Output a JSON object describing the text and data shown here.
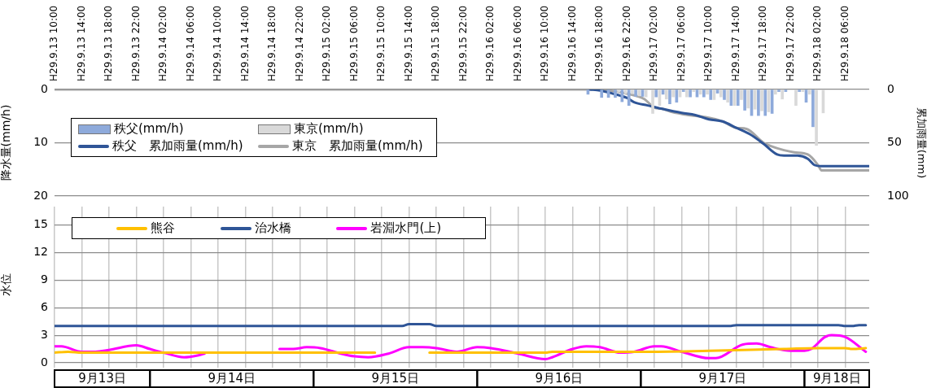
{
  "chart_data": [
    {
      "type": "bar",
      "ylabel": "降水量(mm/h)",
      "y2label": "累加雨量(mm)",
      "xlim": [
        "--09-13T10:00",
        "--09-18T09:30"
      ],
      "xticks": [
        {
          "value": "--09-13T10:00",
          "label": "H29.9.13 10:00"
        },
        {
          "value": "--09-13T14:00",
          "label": "H29.9.13 14:00"
        },
        {
          "value": "--09-13T18:00",
          "label": "H29.9.13 18:00"
        },
        {
          "value": "--09-13T22:00",
          "label": "H29.9.13 22:00"
        },
        {
          "value": "--09-14T02:00",
          "label": "H29.9.14 02:00"
        },
        {
          "value": "--09-14T06:00",
          "label": "H29.9.14 06:00"
        },
        {
          "value": "--09-14T10:00",
          "label": "H29.9.14 10:00"
        },
        {
          "value": "--09-14T14:00",
          "label": "H29.9.14 14:00"
        },
        {
          "value": "--09-14T18:00",
          "label": "H29.9.14 18:00"
        },
        {
          "value": "--09-14T22:00",
          "label": "H29.9.14 22:00"
        },
        {
          "value": "--09-15T02:00",
          "label": "H29.9.15 02:00"
        },
        {
          "value": "--09-15T06:00",
          "label": "H29.9.15 06:00"
        },
        {
          "value": "--09-15T10:00",
          "label": "H29.9.15 10:00"
        },
        {
          "value": "--09-15T14:00",
          "label": "H29.9.15 14:00"
        },
        {
          "value": "--09-15T18:00",
          "label": "H29.9.15 18:00"
        },
        {
          "value": "--09-15T22:00",
          "label": "H29.9.15 22:00"
        },
        {
          "value": "--09-16T02:00",
          "label": "H29.9.16 02:00"
        },
        {
          "value": "--09-16T06:00",
          "label": "H29.9.16 06:00"
        },
        {
          "value": "--09-16T10:00",
          "label": "H29.9.16 10:00"
        },
        {
          "value": "--09-16T14:00",
          "label": "H29.9.16 14:00"
        },
        {
          "value": "--09-16T18:00",
          "label": "H29.9.16 18:00"
        },
        {
          "value": "--09-16T22:00",
          "label": "H29.9.16 22:00"
        },
        {
          "value": "--09-17T02:00",
          "label": "H29.9.17 02:00"
        },
        {
          "value": "--09-17T06:00",
          "label": "H29.9.17 06:00"
        },
        {
          "value": "--09-17T10:00",
          "label": "H29.9.17 10:00"
        },
        {
          "value": "--09-17T14:00",
          "label": "H29.9.17 14:00"
        },
        {
          "value": "--09-17T18:00",
          "label": "H29.9.17 18:00"
        },
        {
          "value": "--09-17T22:00",
          "label": "H29.9.17 22:00"
        },
        {
          "value": "--09-18T02:00",
          "label": "H29.9.18 02:00"
        },
        {
          "value": "--09-18T06:00",
          "label": "H29.9.18 06:00"
        }
      ],
      "ylim": [
        20,
        0
      ],
      "yticks": [
        0,
        10,
        20
      ],
      "y2lim": [
        100,
        0
      ],
      "y2ticks": [
        0,
        50,
        100
      ],
      "grid": "y",
      "legend": "top left",
      "series": [
        {
          "name": "秩父(mm/h)",
          "color": "#8eaadb",
          "x": [
            "--09-16T16:15",
            "--09-16T18:15",
            "--09-16T19:15",
            "--09-16T20:15",
            "--09-16T21:15",
            "--09-16T22:15",
            "--09-16T23:15",
            "--09-17T00:15",
            "--09-17T02:15",
            "--09-17T03:15",
            "--09-17T04:15",
            "--09-17T05:15",
            "--09-17T06:15",
            "--09-17T07:15",
            "--09-17T08:15",
            "--09-17T09:15",
            "--09-17T10:15",
            "--09-17T11:15",
            "--09-17T12:15",
            "--09-17T13:15",
            "--09-17T14:15",
            "--09-17T15:15",
            "--09-17T16:15",
            "--09-17T17:15",
            "--09-17T18:15",
            "--09-17T19:15",
            "--09-17T20:15",
            "--09-17T21:15",
            "--09-17T23:15",
            "--09-18T00:15",
            "--09-18T01:15"
          ],
          "values": [
            0.9,
            1.5,
            1.5,
            1.5,
            2.3,
            3.0,
            1.3,
            1.3,
            1.4,
            0.9,
            2.7,
            2.4,
            0.4,
            1.4,
            1.4,
            1.4,
            1.9,
            0.7,
            1.9,
            3.0,
            3.0,
            3.9,
            4.9,
            4.9,
            4.9,
            4.5,
            0.4,
            0.4,
            0.4,
            2.4,
            7.0
          ]
        },
        {
          "name": "東京(mm/h)",
          "color": "#d9d9d9",
          "x": [
            "--09-16T20:45",
            "--09-16T21:45",
            "--09-16T22:45",
            "--09-16T23:45",
            "--09-17T00:45",
            "--09-17T01:45",
            "--09-17T02:45",
            "--09-17T03:45",
            "--09-17T04:45",
            "--09-17T05:45",
            "--09-17T06:45",
            "--09-17T07:45",
            "--09-17T08:45",
            "--09-17T09:45",
            "--09-17T10:45",
            "--09-17T11:45",
            "--09-17T12:45",
            "--09-17T13:45",
            "--09-17T14:45",
            "--09-17T15:45",
            "--09-17T16:45",
            "--09-17T17:45",
            "--09-17T18:45",
            "--09-17T19:45",
            "--09-17T20:45",
            "--09-17T22:45",
            "--09-17T23:45",
            "--09-18T00:45",
            "--09-18T01:45",
            "--09-18T02:45"
          ],
          "values": [
            0.5,
            0.8,
            0.8,
            1.2,
            1.4,
            4.5,
            3.0,
            1.8,
            1.4,
            1.4,
            1.4,
            0.4,
            0.9,
            0.9,
            1.9,
            1.4,
            2.4,
            3.0,
            1.9,
            3.5,
            3.7,
            4.0,
            4.2,
            0.9,
            1.8,
            3.0,
            0.4,
            0.9,
            10.5,
            4.4
          ]
        },
        {
          "name": "秩父　累加雨量(mm/h)",
          "type": "line",
          "axis": "y2",
          "color": "#2f5597",
          "x": [
            "--09-16T16:30",
            "--09-16T18:00",
            "--09-16T20:30",
            "--09-16T22:00",
            "--09-16T23:00",
            "--09-17T01:00",
            "--09-17T03:00",
            "--09-17T06:00",
            "--09-17T08:00",
            "--09-17T10:00",
            "--09-17T12:00",
            "--09-17T14:00",
            "--09-17T16:00",
            "--09-17T18:00",
            "--09-17T20:00",
            "--09-17T21:00",
            "--09-17T23:00",
            "--09-18T00:30",
            "--09-18T01:30",
            "--09-18T02:30",
            "--09-18T09:30"
          ],
          "values": [
            0,
            1,
            5,
            8,
            12,
            15,
            18,
            22,
            24,
            28,
            30,
            36,
            42,
            51,
            61,
            62,
            62,
            65,
            71,
            72,
            72
          ]
        },
        {
          "name": "東京　累加雨量(mm/h)",
          "type": "line",
          "axis": "y2",
          "color": "#a6a6a6",
          "x": [
            "--09-13T10:00",
            "--09-16T17:30",
            "--09-16T19:30",
            "--09-16T22:00",
            "--09-17T00:30",
            "--09-17T02:00",
            "--09-17T03:00",
            "--09-17T04:30",
            "--09-17T07:00",
            "--09-17T09:30",
            "--09-17T12:00",
            "--09-17T14:00",
            "--09-17T15:30",
            "--09-17T18:00",
            "--09-17T19:00",
            "--09-17T21:00",
            "--09-17T22:30",
            "--09-18T00:30",
            "--09-18T02:00",
            "--09-18T02:30",
            "--09-18T09:30"
          ],
          "values": [
            0,
            0,
            1,
            4,
            9,
            17,
            18,
            21,
            24,
            26,
            30,
            36,
            37,
            50,
            53,
            57,
            59,
            61,
            71,
            76,
            76
          ]
        }
      ]
    },
    {
      "type": "line",
      "ylabel": "水位",
      "xlim": [
        "--09-13T10:00",
        "--09-18T09:30"
      ],
      "xticks": [
        {
          "value": "--09-13T10:00",
          "label": null
        },
        {
          "value": "--09-13T14:00",
          "label": null
        },
        {
          "value": "--09-13T17:00",
          "label": "9月13日"
        },
        {
          "value": "--09-13T18:00",
          "label": null
        },
        {
          "value": "--09-13T22:00",
          "label": null
        },
        {
          "value": "--09-14T02:00",
          "label": null
        },
        {
          "value": "--09-14T06:00",
          "label": null
        },
        {
          "value": "--09-14T10:00",
          "label": null
        },
        {
          "value": "--09-14T12:00",
          "label": "9月14日"
        },
        {
          "value": "--09-14T14:00",
          "label": null
        },
        {
          "value": "--09-14T18:00",
          "label": null
        },
        {
          "value": "--09-14T22:00",
          "label": null
        },
        {
          "value": "--09-15T02:00",
          "label": null
        },
        {
          "value": "--09-15T06:00",
          "label": null
        },
        {
          "value": "--09-15T10:00",
          "label": null
        },
        {
          "value": "--09-15T12:00",
          "label": "9月15日"
        },
        {
          "value": "--09-15T14:00",
          "label": null
        },
        {
          "value": "--09-15T18:00",
          "label": null
        },
        {
          "value": "--09-15T22:00",
          "label": null
        },
        {
          "value": "--09-16T02:00",
          "label": null
        },
        {
          "value": "--09-16T06:00",
          "label": null
        },
        {
          "value": "--09-16T10:00",
          "label": null
        },
        {
          "value": "--09-16T12:00",
          "label": "9月16日"
        },
        {
          "value": "--09-16T14:00",
          "label": null
        },
        {
          "value": "--09-16T18:00",
          "label": null
        },
        {
          "value": "--09-16T22:00",
          "label": null
        },
        {
          "value": "--09-17T02:00",
          "label": null
        },
        {
          "value": "--09-17T06:00",
          "label": null
        },
        {
          "value": "--09-17T10:00",
          "label": null
        },
        {
          "value": "--09-17T12:00",
          "label": "9月17日"
        },
        {
          "value": "--09-17T14:00",
          "label": null
        },
        {
          "value": "--09-17T18:00",
          "label": null
        },
        {
          "value": "--09-17T22:00",
          "label": null
        },
        {
          "value": "--09-18T02:00",
          "label": null
        },
        {
          "value": "--09-18T04:45",
          "label": "9月18日"
        },
        {
          "value": "--09-18T06:00",
          "label": null
        }
      ],
      "ylim": [
        0,
        17
      ],
      "yticks": [
        0,
        3,
        6,
        9,
        12,
        15
      ],
      "grid": true,
      "legend": "top left",
      "marker": "none",
      "series": [
        {
          "name": "熊谷",
          "color": "#ffc000",
          "x": [
            "--09-13T10:00",
            "--09-13T12:00",
            "--09-13T14:00",
            "--09-15T09:00",
            "--09-15T12:00",
            "--09-15T17:00",
            "--09-16T02:00",
            "--09-16T10:00",
            "--09-16T11:00",
            "--09-17T01:00",
            "--09-17T10:00",
            "--09-17T15:00",
            "--09-17T21:00",
            "--09-18T02:00",
            "--09-18T06:00",
            "--09-18T07:00",
            "--09-18T09:00"
          ],
          "values": [
            1.1,
            1.2,
            1.1,
            1.1,
            null,
            1.1,
            1.1,
            1.1,
            1.2,
            1.2,
            1.3,
            1.4,
            1.5,
            1.6,
            1.6,
            1.5,
            1.6
          ]
        },
        {
          "name": "治水橋",
          "color": "#2f5597",
          "x": [
            "--09-13T10:00",
            "--09-15T13:00",
            "--09-15T14:00",
            "--09-15T17:00",
            "--09-15T18:00",
            "--09-17T13:00",
            "--09-17T14:00",
            "--09-18T05:00",
            "--09-18T06:00",
            "--09-18T07:00",
            "--09-18T08:00",
            "--09-18T09:00"
          ],
          "values": [
            4.0,
            4.0,
            4.2,
            4.2,
            4.0,
            4.0,
            4.1,
            4.1,
            4.0,
            4.0,
            4.1,
            4.1
          ]
        },
        {
          "name": "岩淵水門(上)",
          "color": "#ff00ff",
          "x": [
            "--09-13T10:00",
            "--09-13T11:00",
            "--09-13T14:00",
            "--09-13T16:00",
            "--09-13T18:00",
            "--09-13T22:00",
            "--09-14T00:00",
            "--09-14T02:00",
            "--09-14T05:00",
            "--09-14T07:00",
            "--09-14T08:00",
            "--09-14T13:00",
            "--09-14T19:00",
            "--09-14T21:00",
            "--09-14T23:00",
            "--09-15T01:00",
            "--09-15T04:00",
            "--09-15T06:00",
            "--09-15T08:00",
            "--09-15T11:00",
            "--09-15T14:00",
            "--09-15T16:00",
            "--09-15T18:00",
            "--09-15T21:00",
            "--09-16T00:00",
            "--09-16T02:00",
            "--09-16T06:00",
            "--09-16T10:00",
            "--09-16T11:00",
            "--09-16T14:00",
            "--09-16T16:00",
            "--09-16T18:00",
            "--09-16T21:00",
            "--09-16T23:00",
            "--09-17T02:00",
            "--09-17T03:00",
            "--09-17T06:00",
            "--09-17T10:00",
            "--09-17T11:00",
            "--09-17T15:00",
            "--09-17T17:00",
            "--09-17T19:00",
            "--09-17T22:00",
            "--09-18T00:00",
            "--09-18T01:00",
            "--09-18T03:00",
            "--09-18T04:00",
            "--09-18T06:00",
            "--09-18T09:00"
          ],
          "values": [
            1.8,
            1.8,
            1.2,
            1.2,
            1.4,
            1.9,
            1.5,
            1.1,
            0.6,
            0.8,
            1.0,
            null,
            1.5,
            1.5,
            1.7,
            1.6,
            1.0,
            0.7,
            0.6,
            1.0,
            1.7,
            1.7,
            1.6,
            1.2,
            1.7,
            1.6,
            1.0,
            0.4,
            0.6,
            1.5,
            1.8,
            1.7,
            1.1,
            1.2,
            1.8,
            1.8,
            1.2,
            0.5,
            0.5,
            2.0,
            2.1,
            1.7,
            1.3,
            1.3,
            1.5,
            2.8,
            3.0,
            2.8,
            1.2
          ]
        }
      ]
    }
  ]
}
